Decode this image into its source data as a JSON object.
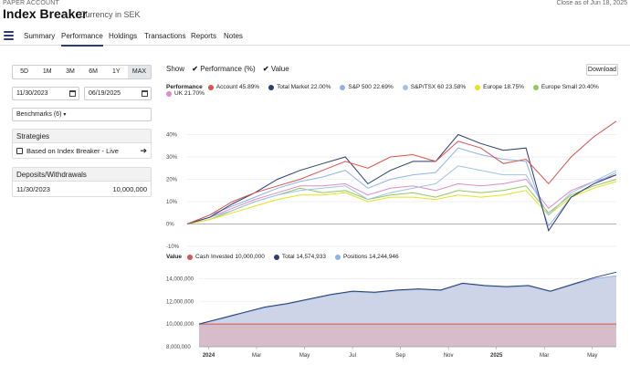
{
  "header": {
    "account_type": "PAPER ACCOUNT",
    "as_of": "Close as of Jun 18, 2025",
    "title": "Index Breaker",
    "currency": "Currency in SEK"
  },
  "nav": {
    "tabs": [
      "Summary",
      "Performance",
      "Holdings",
      "Transactions",
      "Reports",
      "Notes"
    ],
    "active": "Performance"
  },
  "sidebar": {
    "ranges": [
      "5D",
      "1M",
      "3M",
      "6M",
      "1Y",
      "MAX"
    ],
    "selected_range": "MAX",
    "start_date": "11/30/2023",
    "end_date": "06/19/2025",
    "benchmarks_label": "Benchmarks (6)",
    "strategies_title": "Strategies",
    "strategy_item": "Based on Index Breaker - Live",
    "deposits_title": "Deposits/Withdrawals",
    "deposit_date": "11/30/2023",
    "deposit_amount": "10,000,000"
  },
  "controls": {
    "show_label": "Show",
    "perf_toggle": "Performance (%)",
    "value_toggle": "Value",
    "download": "Download"
  },
  "legend_perf": {
    "label": "Performance",
    "items": [
      {
        "name": "Account",
        "value": "45.89%",
        "color": "#d9534f"
      },
      {
        "name": "Total Market",
        "value": "22.00%",
        "color": "#2b3e6e"
      },
      {
        "name": "S&P 500",
        "value": "22.69%",
        "color": "#8fb3e8"
      },
      {
        "name": "S&P/TSX 60",
        "value": "23.58%",
        "color": "#9dc3ea"
      },
      {
        "name": "Europe",
        "value": "18.75%",
        "color": "#e8e020"
      },
      {
        "name": "Europe Small",
        "value": "20.40%",
        "color": "#8fc860"
      },
      {
        "name": "UK",
        "value": "21.70%",
        "color": "#e08ac8"
      }
    ]
  },
  "legend_value": {
    "label": "Value",
    "items": [
      {
        "name": "Cash Invested",
        "value": "10,000,000",
        "color": "#d9534f"
      },
      {
        "name": "Total",
        "value": "14,574,933",
        "color": "#2b3e6e"
      },
      {
        "name": "Positions",
        "value": "14,244,946",
        "color": "#8fb3e8"
      }
    ]
  },
  "chart_data": [
    {
      "type": "line",
      "title": "Performance",
      "ylabel": "%",
      "ylim": [
        -10,
        50
      ],
      "yticks": [
        "-10%",
        "0%",
        "10%",
        "20%",
        "30%",
        "40%"
      ],
      "x": [
        0,
        1,
        2,
        3,
        4,
        5,
        6,
        7,
        8,
        9,
        10,
        11,
        12,
        13,
        14,
        15,
        16,
        17,
        18,
        19
      ],
      "series": [
        {
          "name": "Account",
          "values": [
            0,
            4,
            10,
            14,
            17,
            20,
            24,
            28,
            25,
            30,
            31,
            28,
            37,
            34,
            27,
            29,
            18,
            30,
            39,
            46
          ]
        },
        {
          "name": "Total Market",
          "values": [
            0,
            3,
            9,
            14,
            20,
            24,
            27,
            30,
            18,
            24,
            28,
            28,
            40,
            36,
            33,
            34,
            -3,
            12,
            18,
            22
          ]
        },
        {
          "name": "S&P 500",
          "values": [
            0,
            4,
            8,
            12,
            16,
            19,
            21,
            24,
            16,
            20,
            22,
            23,
            34,
            31,
            29,
            28,
            -1,
            12,
            18,
            23
          ]
        },
        {
          "name": "S&P/TSX 60",
          "values": [
            0,
            3,
            6,
            10,
            13,
            15,
            16,
            17,
            11,
            14,
            16,
            18,
            26,
            24,
            22,
            22,
            4,
            14,
            19,
            24
          ]
        },
        {
          "name": "Europe",
          "values": [
            0,
            2,
            5,
            8,
            11,
            13,
            13,
            14,
            10,
            12,
            12,
            11,
            13,
            12,
            13,
            15,
            4,
            12,
            16,
            19
          ]
        },
        {
          "name": "Europe Small",
          "values": [
            0,
            2,
            6,
            10,
            13,
            16,
            14,
            15,
            11,
            13,
            14,
            12,
            15,
            14,
            15,
            17,
            5,
            13,
            17,
            20
          ]
        },
        {
          "name": "UK",
          "values": [
            0,
            3,
            7,
            11,
            14,
            17,
            17,
            18,
            13,
            16,
            17,
            15,
            18,
            17,
            18,
            20,
            7,
            15,
            19,
            22
          ]
        }
      ]
    },
    {
      "type": "area",
      "title": "Value",
      "ylim": [
        8000000,
        15000000
      ],
      "yticks": [
        "8,000,000",
        "10,000,000",
        "12,000,000",
        "14,000,000"
      ],
      "xticks": [
        "2024",
        "Mar",
        "May",
        "Jul",
        "Sep",
        "Nov",
        "2025",
        "Mar",
        "May"
      ],
      "x": [
        0,
        1,
        2,
        3,
        4,
        5,
        6,
        7,
        8,
        9,
        10,
        11,
        12,
        13,
        14,
        15,
        16,
        17,
        18,
        19
      ],
      "series": [
        {
          "name": "Cash Invested",
          "values": [
            10000000,
            10000000,
            10000000,
            10000000,
            10000000,
            10000000,
            10000000,
            10000000,
            10000000,
            10000000,
            10000000,
            10000000,
            10000000,
            10000000,
            10000000,
            10000000,
            10000000,
            10000000,
            10000000,
            10000000
          ]
        },
        {
          "name": "Total",
          "values": [
            10000000,
            10500000,
            11000000,
            11500000,
            11800000,
            12200000,
            12600000,
            12900000,
            12800000,
            13000000,
            13100000,
            13000000,
            13600000,
            13400000,
            13300000,
            13400000,
            12900000,
            13500000,
            14100000,
            14575000
          ]
        },
        {
          "name": "Positions",
          "values": [
            10000000,
            10450000,
            10950000,
            11450000,
            11750000,
            12150000,
            12550000,
            12850000,
            12750000,
            12950000,
            13050000,
            12950000,
            13550000,
            13350000,
            13250000,
            13350000,
            12850000,
            13450000,
            14000000,
            14245000
          ]
        }
      ]
    }
  ]
}
